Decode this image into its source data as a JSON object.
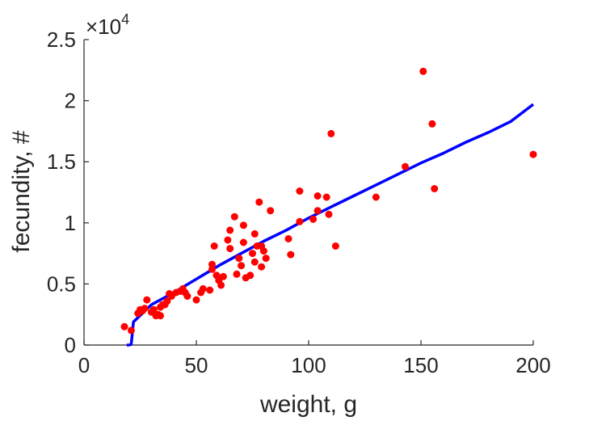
{
  "chart_data": {
    "type": "scatter",
    "xlabel": "weight, g",
    "ylabel": "fecundity, #",
    "xlim": [
      0,
      200
    ],
    "ylim": [
      0,
      25000
    ],
    "x_ticks": [
      "0",
      "50",
      "100",
      "150",
      "200"
    ],
    "y_ticks": [
      "0",
      "0.5",
      "1",
      "1.5",
      "2",
      "2.5"
    ],
    "y_multiplier": "×10",
    "y_exponent": "4",
    "grid": false,
    "legend": "none",
    "colors": {
      "points": "#ff0000",
      "fit": "#0000ff",
      "axes": "#262626"
    },
    "series": [
      {
        "kind": "scatter",
        "points": [
          [
            18,
            1500
          ],
          [
            21,
            1200
          ],
          [
            24,
            2600
          ],
          [
            25,
            2900
          ],
          [
            26,
            2800
          ],
          [
            27,
            3000
          ],
          [
            28,
            3700
          ],
          [
            30,
            2700
          ],
          [
            31,
            2900
          ],
          [
            32,
            2400
          ],
          [
            33,
            2500
          ],
          [
            34,
            2400
          ],
          [
            34,
            3100
          ],
          [
            35,
            3300
          ],
          [
            36,
            3300
          ],
          [
            37,
            3600
          ],
          [
            38,
            4200
          ],
          [
            39,
            4000
          ],
          [
            41,
            4300
          ],
          [
            43,
            4400
          ],
          [
            44,
            4600
          ],
          [
            45,
            4300
          ],
          [
            46,
            4000
          ],
          [
            50,
            3700
          ],
          [
            52,
            4300
          ],
          [
            53,
            4600
          ],
          [
            56,
            4500
          ],
          [
            57,
            6200
          ],
          [
            57,
            6600
          ],
          [
            58,
            8100
          ],
          [
            59,
            5700
          ],
          [
            60,
            5300
          ],
          [
            61,
            4900
          ],
          [
            62,
            5600
          ],
          [
            64,
            8600
          ],
          [
            65,
            9400
          ],
          [
            65,
            7900
          ],
          [
            67,
            10500
          ],
          [
            68,
            5800
          ],
          [
            69,
            7100
          ],
          [
            70,
            6500
          ],
          [
            71,
            8400
          ],
          [
            71,
            9800
          ],
          [
            72,
            5500
          ],
          [
            74,
            5700
          ],
          [
            75,
            7500
          ],
          [
            76,
            9100
          ],
          [
            76,
            6800
          ],
          [
            77,
            8100
          ],
          [
            78,
            11700
          ],
          [
            79,
            8100
          ],
          [
            79,
            6400
          ],
          [
            80,
            7700
          ],
          [
            81,
            7100
          ],
          [
            83,
            11000
          ],
          [
            91,
            8700
          ],
          [
            92,
            7400
          ],
          [
            96,
            12600
          ],
          [
            96,
            10100
          ],
          [
            102,
            10300
          ],
          [
            104,
            12200
          ],
          [
            104,
            11000
          ],
          [
            108,
            12100
          ],
          [
            109,
            10700
          ],
          [
            110,
            17300
          ],
          [
            112,
            8100
          ],
          [
            130,
            12100
          ],
          [
            143,
            14600
          ],
          [
            151,
            22400
          ],
          [
            155,
            18100
          ],
          [
            156,
            12800
          ],
          [
            200,
            15600
          ]
        ]
      },
      {
        "kind": "line",
        "points": [
          [
            19,
            0
          ],
          [
            20,
            0
          ],
          [
            21,
            50
          ],
          [
            22,
            1900
          ],
          [
            30,
            3300
          ],
          [
            40,
            4300
          ],
          [
            50,
            5400
          ],
          [
            60,
            6500
          ],
          [
            70,
            7500
          ],
          [
            80,
            8500
          ],
          [
            90,
            9400
          ],
          [
            100,
            10400
          ],
          [
            110,
            11300
          ],
          [
            120,
            12200
          ],
          [
            130,
            13100
          ],
          [
            140,
            14000
          ],
          [
            150,
            14900
          ],
          [
            160,
            15700
          ],
          [
            170,
            16600
          ],
          [
            180,
            17400
          ],
          [
            190,
            18300
          ],
          [
            200,
            19700
          ]
        ]
      }
    ]
  }
}
